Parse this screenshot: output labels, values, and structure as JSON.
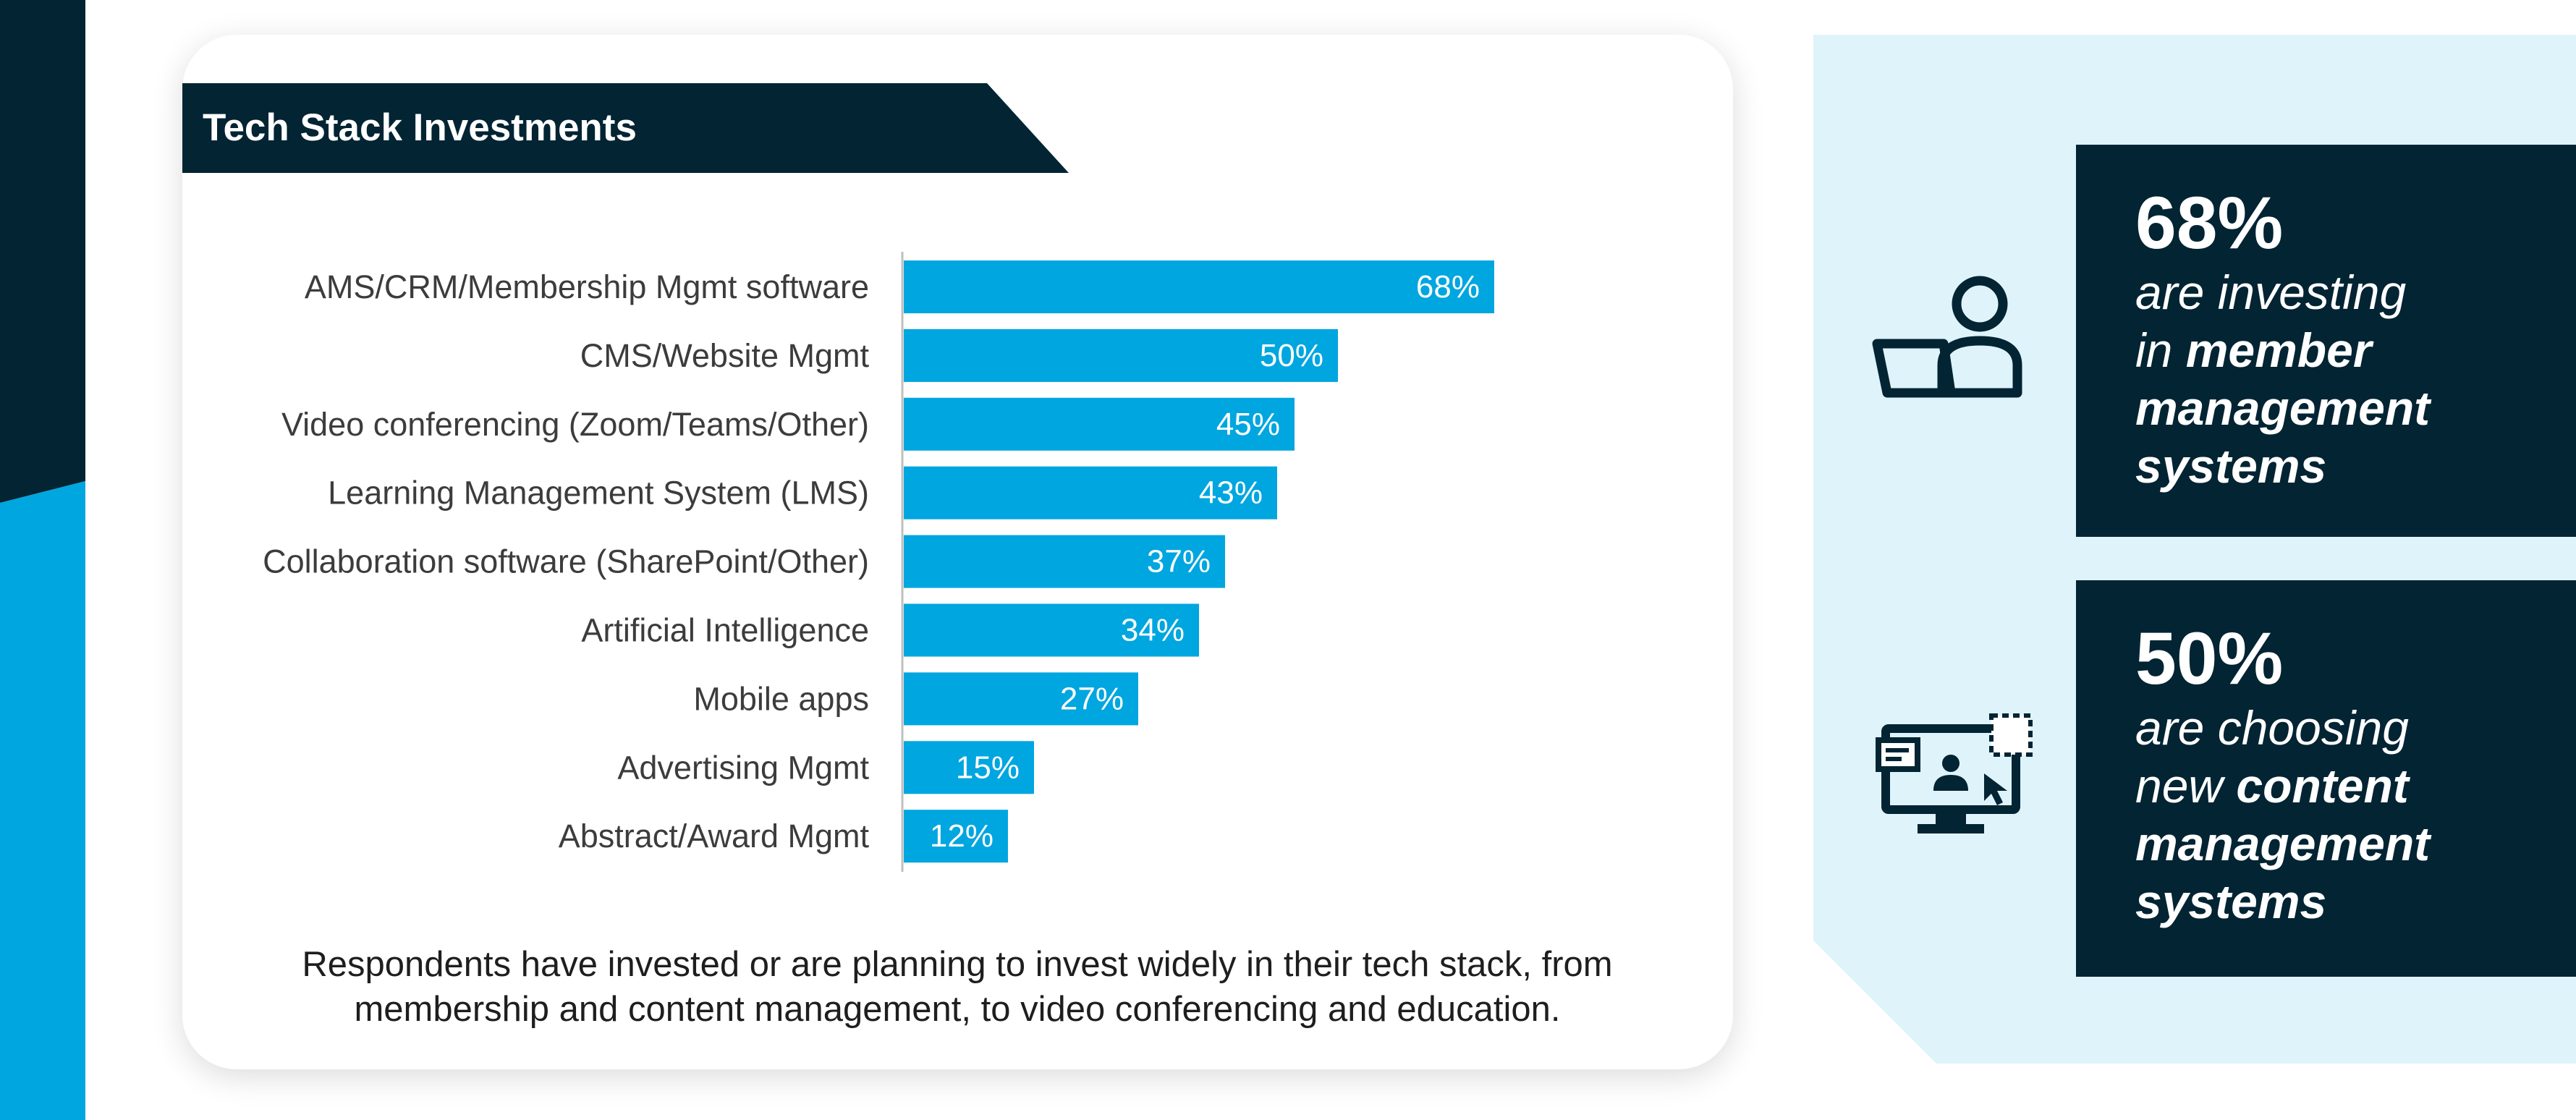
{
  "colors": {
    "navy": "#022433",
    "bar_blue": "#00a6df",
    "light_panel": "#dff3fb",
    "caption_text": "#1e1e1e",
    "label_text": "#3c3c3c"
  },
  "chart_data": {
    "type": "bar",
    "orientation": "horizontal",
    "title": "Tech Stack Investments",
    "xlabel": "",
    "ylabel": "",
    "xlim": [
      0,
      100
    ],
    "value_suffix": "%",
    "grid": false,
    "categories": [
      "AMS/CRM/Membership Mgmt software",
      "CMS/Website Mgmt",
      "Video conferencing (Zoom/Teams/Other)",
      "Learning Management System (LMS)",
      "Collaboration software (SharePoint/Other)",
      "Artificial Intelligence",
      "Mobile apps",
      "Advertising Mgmt",
      "Abstract/Award Mgmt"
    ],
    "values": [
      68,
      50,
      45,
      43,
      37,
      34,
      27,
      15,
      12
    ]
  },
  "caption": {
    "line1": "Respondents have invested or are planning to invest widely in their tech stack, from",
    "line2": "membership and content management, to video conferencing and education."
  },
  "stats": [
    {
      "value": "68%",
      "line1": "are investing",
      "line2_prefix": "in ",
      "line2_bold": "member",
      "line3": "management",
      "line4": "systems",
      "icon": "person-laptop-icon"
    },
    {
      "value": "50%",
      "line1": "are choosing",
      "line2_prefix": "new ",
      "line2_bold": "content",
      "line3": "management",
      "line4": "systems",
      "icon": "monitor-content-icon"
    }
  ]
}
